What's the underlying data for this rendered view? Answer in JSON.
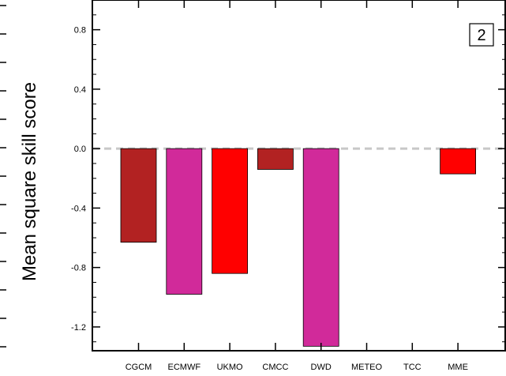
{
  "chart_data": {
    "type": "bar",
    "title": "",
    "xlabel": "",
    "ylabel": "Mean square skill score",
    "panel_label": "2",
    "categories": [
      "CGCM",
      "ECMWF",
      "UKMO",
      "CMCC",
      "DWD",
      "METEO",
      "TCC",
      "MME"
    ],
    "values": [
      -0.63,
      -0.98,
      -0.84,
      -0.14,
      -1.33,
      null,
      null,
      -0.17
    ],
    "bar_colors": [
      "#b22222",
      "#d12a9a",
      "#ff0000",
      "#b22222",
      "#d12a9a",
      "#b22222",
      "#b22222",
      "#ff0000"
    ],
    "yticks": [
      0.8,
      0.4,
      0.0,
      -0.4,
      -0.8,
      -1.2
    ],
    "ytick_labels": [
      "0.8",
      "0.4",
      "0.0",
      "-0.4",
      "-0.8",
      "-1.2"
    ],
    "ylim": [
      -1.36,
      1.0
    ],
    "reference_line": {
      "y": 0.0,
      "style": "dashed",
      "color": "#c8c8c8"
    },
    "grid": false,
    "legend": "none"
  }
}
